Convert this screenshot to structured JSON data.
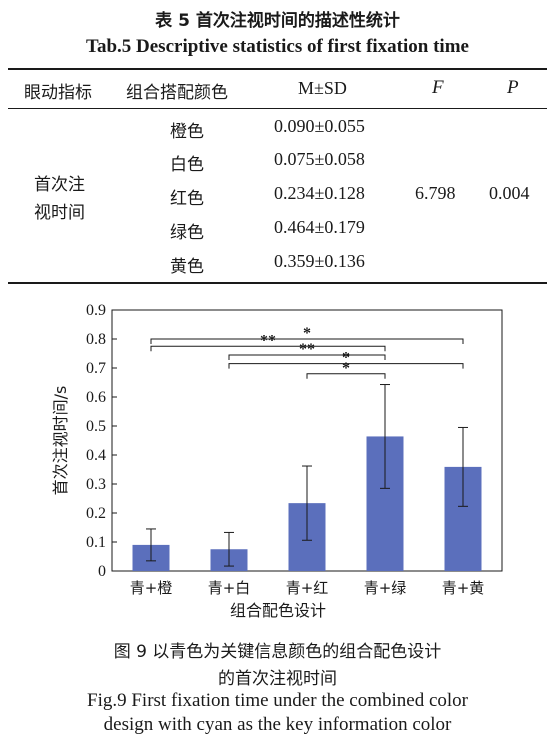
{
  "table": {
    "caption_zh": "表 5  首次注视时间的描述性统计",
    "caption_en": "Tab.5 Descriptive statistics of first fixation time",
    "headers": [
      "眼动指标",
      "组合搭配颜色",
      "M±SD",
      "F",
      "P"
    ],
    "metric_line1": "首次注",
    "metric_line2": "视时间",
    "rows": [
      {
        "color": "橙色",
        "msd": "0.090±0.055"
      },
      {
        "color": "白色",
        "msd": "0.075±0.058"
      },
      {
        "color": "红色",
        "msd": "0.234±0.128"
      },
      {
        "color": "绿色",
        "msd": "0.464±0.179"
      },
      {
        "color": "黄色",
        "msd": "0.359±0.136"
      }
    ],
    "F": "6.798",
    "P": "0.004"
  },
  "chart_data": {
    "type": "bar",
    "categories": [
      "青+橙",
      "青+白",
      "青+红",
      "青+绿",
      "青+黄"
    ],
    "values": [
      0.09,
      0.075,
      0.234,
      0.464,
      0.359
    ],
    "errors": [
      0.055,
      0.058,
      0.128,
      0.179,
      0.136
    ],
    "ylabel": "首次注视时间/s",
    "xlabel": "组合配色设计",
    "ylim": [
      0,
      0.9
    ],
    "yticks": [
      "0",
      "0.1",
      "0.2",
      "0.3",
      "0.4",
      "0.5",
      "0.6",
      "0.7",
      "0.8",
      "0.9"
    ],
    "bar_color": "#5b6fbc",
    "significance": [
      {
        "from": 0,
        "to": 4,
        "label": "*"
      },
      {
        "from": 0,
        "to": 3,
        "label": "**"
      },
      {
        "from": 1,
        "to": 3,
        "label": "**"
      },
      {
        "from": 1,
        "to": 4,
        "label": "*"
      },
      {
        "from": 2,
        "to": 3,
        "label": "*"
      }
    ]
  },
  "figure": {
    "caption_zh_line1": "图 9   以青色为关键信息颜色的组合配色设计",
    "caption_zh_line2": "的首次注视时间",
    "caption_en_line1": "Fig.9 First fixation time under the combined color",
    "caption_en_line2": "design with cyan as the key information color"
  }
}
